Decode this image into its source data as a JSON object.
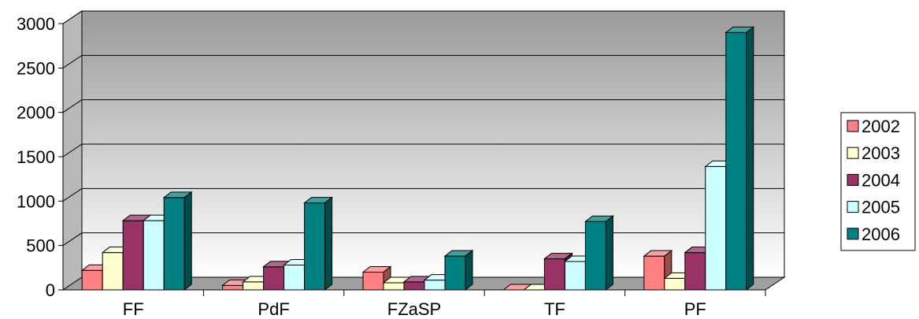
{
  "chart_data": {
    "type": "bar",
    "title": "",
    "xlabel": "",
    "ylabel": "",
    "categories": [
      "FF",
      "PdF",
      "FZaSP",
      "TF",
      "PF"
    ],
    "ylim": [
      0,
      3000
    ],
    "yticks": [
      0,
      500,
      1000,
      1500,
      2000,
      2500,
      3000
    ],
    "grid": true,
    "legend_position": "right",
    "style": "3d-clustered",
    "series": [
      {
        "name": "2002",
        "color": "#ff8080",
        "values": [
          220,
          50,
          200,
          0,
          380
        ]
      },
      {
        "name": "2003",
        "color": "#ffffcc",
        "values": [
          420,
          90,
          80,
          0,
          130
        ]
      },
      {
        "name": "2004",
        "color": "#993366",
        "values": [
          780,
          260,
          90,
          350,
          420
        ]
      },
      {
        "name": "2005",
        "color": "#ccffff",
        "values": [
          780,
          280,
          110,
          320,
          1390
        ]
      },
      {
        "name": "2006",
        "color": "#008080",
        "values": [
          1040,
          980,
          380,
          770,
          2900
        ]
      }
    ]
  }
}
